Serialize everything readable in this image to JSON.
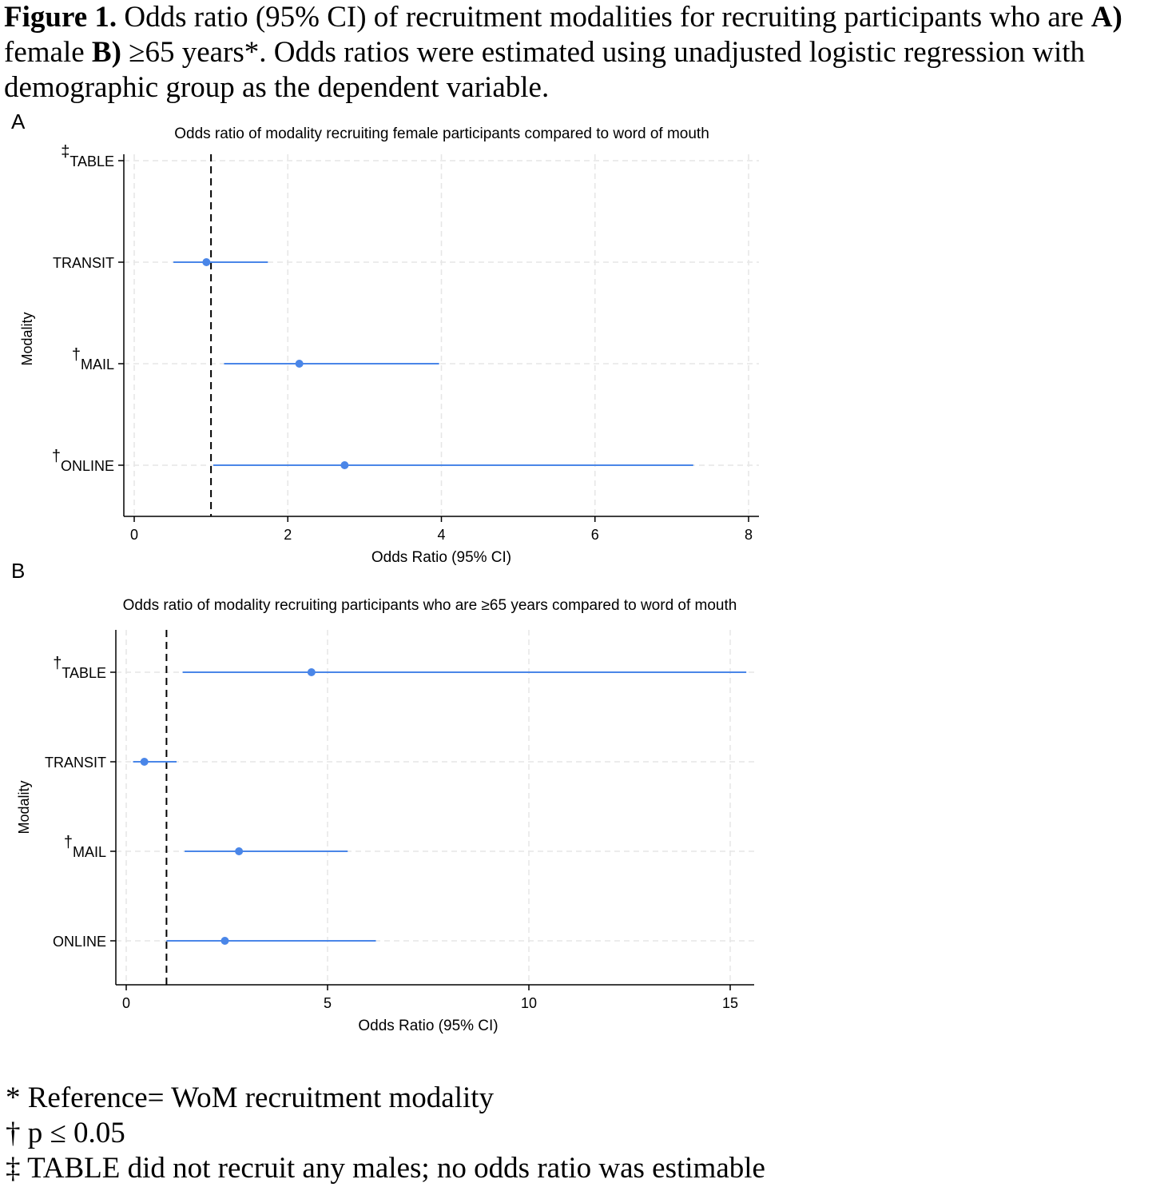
{
  "caption": {
    "figure_label": "Figure 1.",
    "part1": " Odds ratio (95% CI) of recruitment modalities for recruiting participants who are ",
    "a_label": "A)",
    "part2": " female ",
    "b_label": "B)",
    "part3": " ≥65 years*. Odds ratios were estimated using unadjusted logistic regression with demographic group as the dependent variable."
  },
  "panels": {
    "a_letter": "A",
    "b_letter": "B"
  },
  "chart_data": [
    {
      "type": "scatter",
      "subtype": "forest-plot",
      "title": "Odds ratio of modality recruiting female participants compared to word of mouth",
      "xlabel": "Odds Ratio (95% CI)",
      "ylabel": "Modality",
      "xlim": [
        0,
        8
      ],
      "xticks": [
        "0",
        "2",
        "4",
        "6",
        "8"
      ],
      "reference_line": 1,
      "grid": true,
      "color": "#4a86e8",
      "categories": [
        {
          "prefix": "‡",
          "label": "TABLE",
          "or": null,
          "lo": null,
          "hi": null
        },
        {
          "prefix": "",
          "label": "TRANSIT",
          "or": 0.94,
          "lo": 0.51,
          "hi": 1.74
        },
        {
          "prefix": "†",
          "label": "MAIL",
          "or": 2.15,
          "lo": 1.17,
          "hi": 3.97
        },
        {
          "prefix": "†",
          "label": "ONLINE",
          "or": 2.74,
          "lo": 1.03,
          "hi": 7.28
        }
      ]
    },
    {
      "type": "scatter",
      "subtype": "forest-plot",
      "title": "Odds ratio of modality recruiting participants who are ≥65 years compared to word of mouth",
      "xlabel": "Odds Ratio (95% CI)",
      "ylabel": "Modality",
      "xlim": [
        0,
        15
      ],
      "xticks": [
        "0",
        "5",
        "10",
        "15"
      ],
      "reference_line": 1,
      "grid": true,
      "color": "#4a86e8",
      "categories": [
        {
          "prefix": "†",
          "label": "TABLE",
          "or": 4.6,
          "lo": 1.4,
          "hi": 15.4
        },
        {
          "prefix": "",
          "label": "TRANSIT",
          "or": 0.45,
          "lo": 0.17,
          "hi": 1.25
        },
        {
          "prefix": "†",
          "label": "MAIL",
          "or": 2.8,
          "lo": 1.45,
          "hi": 5.5
        },
        {
          "prefix": "",
          "label": "ONLINE",
          "or": 2.45,
          "lo": 1.0,
          "hi": 6.2
        }
      ]
    }
  ],
  "footnotes": {
    "ref": "* Reference= WoM recruitment modality",
    "sig": "† p ≤ 0.05",
    "table": "‡ TABLE did not recruit any males; no odds ratio was estimable"
  }
}
